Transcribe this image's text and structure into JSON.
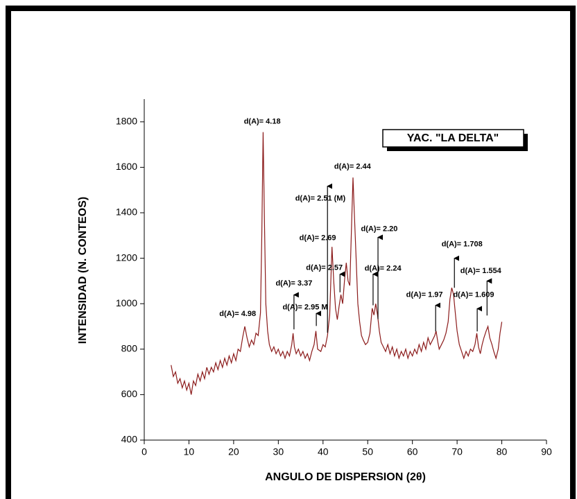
{
  "chart_data": {
    "type": "line",
    "xlabel": "ANGULO DE DISPERSION (2θ)",
    "ylabel": "INTENSIDAD (N. CONTEOS)",
    "box_label": "YAC. \"LA DELTA\"",
    "color": "#8b1a1a",
    "xlim": [
      0,
      90
    ],
    "xticks": [
      0,
      10,
      20,
      30,
      40,
      50,
      60,
      70,
      80,
      90
    ],
    "ylim": [
      400,
      1900
    ],
    "yticks": [
      400,
      600,
      800,
      1000,
      1200,
      1400,
      1600,
      1800
    ],
    "x": [
      6,
      6.5,
      7,
      7.5,
      8,
      8.5,
      9,
      9.5,
      10,
      10.5,
      11,
      11.5,
      12,
      12.5,
      13,
      13.5,
      14,
      14.5,
      15,
      15.5,
      16,
      16.5,
      17,
      17.5,
      18,
      18.5,
      19,
      19.5,
      20,
      20.5,
      21,
      21.5,
      22,
      22.5,
      23,
      23.5,
      24,
      24.5,
      25,
      25.5,
      26,
      26.3,
      26.6,
      26.9,
      27.2,
      27.6,
      28,
      28.5,
      29,
      29.5,
      30,
      30.5,
      31,
      31.5,
      32,
      32.5,
      33,
      33.3,
      33.6,
      34,
      34.5,
      35,
      35.5,
      36,
      36.5,
      37,
      37.5,
      38,
      38.4,
      38.8,
      39.5,
      40,
      40.5,
      41,
      41.5,
      42,
      42.4,
      42.8,
      43.2,
      43.6,
      44,
      44.4,
      44.8,
      45.2,
      45.6,
      46,
      46.4,
      46.7,
      47,
      47.4,
      47.8,
      48.2,
      48.6,
      49,
      49.5,
      50,
      50.5,
      51,
      51.4,
      51.8,
      52.2,
      52.6,
      53,
      53.5,
      54,
      54.5,
      55,
      55.5,
      56,
      56.5,
      57,
      57.5,
      58,
      58.5,
      59,
      59.5,
      60,
      60.5,
      61,
      61.5,
      62,
      62.5,
      63,
      63.5,
      64,
      64.5,
      65,
      65.3,
      65.7,
      66,
      66.5,
      67,
      67.5,
      68,
      68.4,
      68.8,
      69.2,
      69.6,
      70,
      70.5,
      71,
      71.5,
      72,
      72.5,
      73,
      73.5,
      74,
      74.4,
      74.8,
      75.2,
      75.6,
      76,
      76.5,
      76.9,
      77.3,
      77.8,
      78.2,
      78.7,
      79.2,
      79.6,
      80
    ],
    "values": [
      730,
      680,
      700,
      650,
      670,
      630,
      660,
      620,
      650,
      600,
      660,
      640,
      690,
      660,
      700,
      670,
      720,
      690,
      720,
      700,
      740,
      710,
      750,
      720,
      760,
      730,
      770,
      740,
      780,
      750,
      800,
      790,
      850,
      900,
      850,
      810,
      840,
      820,
      870,
      860,
      960,
      1300,
      1755,
      1350,
      1000,
      880,
      820,
      790,
      810,
      780,
      800,
      770,
      790,
      760,
      790,
      770,
      820,
      870,
      810,
      780,
      800,
      770,
      790,
      760,
      780,
      750,
      790,
      820,
      880,
      800,
      790,
      820,
      810,
      860,
      950,
      1250,
      1100,
      980,
      930,
      990,
      1040,
      1000,
      1100,
      1180,
      1100,
      1080,
      1350,
      1555,
      1400,
      1200,
      1000,
      920,
      860,
      840,
      820,
      830,
      870,
      980,
      950,
      1000,
      950,
      880,
      830,
      810,
      790,
      820,
      780,
      810,
      770,
      800,
      760,
      790,
      770,
      800,
      760,
      790,
      770,
      800,
      780,
      820,
      790,
      830,
      800,
      850,
      820,
      840,
      860,
      880,
      830,
      800,
      820,
      840,
      870,
      920,
      1020,
      1070,
      1040,
      960,
      880,
      820,
      790,
      760,
      790,
      770,
      800,
      790,
      820,
      870,
      810,
      780,
      820,
      850,
      880,
      900,
      850,
      820,
      790,
      760,
      800,
      870,
      920
    ],
    "annotations": [
      {
        "text": "d(A)= 4.18",
        "x": 26.4,
        "y": 1800
      },
      {
        "text": "d(A)= 2.44",
        "x": 46.6,
        "y": 1602
      },
      {
        "text": "d(A)= 2.51 (M)",
        "x": 39.4,
        "y": 1462,
        "arrow": [
          41.0,
          872,
          1517
        ]
      },
      {
        "text": "d(A)= 2.20",
        "x": 52.6,
        "y": 1328,
        "arrow": [
          52.3,
          932,
          1292
        ]
      },
      {
        "text": "d(A)= 2.69",
        "x": 38.8,
        "y": 1289
      },
      {
        "text": "d(A)= 2.57",
        "x": 40.3,
        "y": 1158,
        "arrow": [
          43.8,
          1050,
          1130
        ]
      },
      {
        "text": "d(A)= 2.24",
        "x": 53.4,
        "y": 1155,
        "arrow": [
          51.2,
          993,
          1130
        ]
      },
      {
        "text": "d(A)= 3.37",
        "x": 33.5,
        "y": 1088,
        "arrow": [
          33.5,
          887,
          1039
        ]
      },
      {
        "text": "d(A)= 2.95 M",
        "x": 36.0,
        "y": 984,
        "arrow": [
          38.5,
          902,
          957
        ]
      },
      {
        "text": "d(A)= 4.98",
        "x": 20.9,
        "y": 954
      },
      {
        "text": "d(A)= 1.708",
        "x": 71.1,
        "y": 1261,
        "arrow": [
          69.4,
          1070,
          1200
        ]
      },
      {
        "text": "d(A)= 1.97",
        "x": 62.7,
        "y": 1039,
        "arrow": [
          65.2,
          878,
          993
        ]
      },
      {
        "text": "d(A)= 1.554",
        "x": 75.3,
        "y": 1143,
        "arrow": [
          76.7,
          948,
          1100
        ]
      },
      {
        "text": "d(A)= 1.609",
        "x": 73.7,
        "y": 1039,
        "arrow": [
          74.5,
          878,
          978
        ]
      }
    ]
  }
}
